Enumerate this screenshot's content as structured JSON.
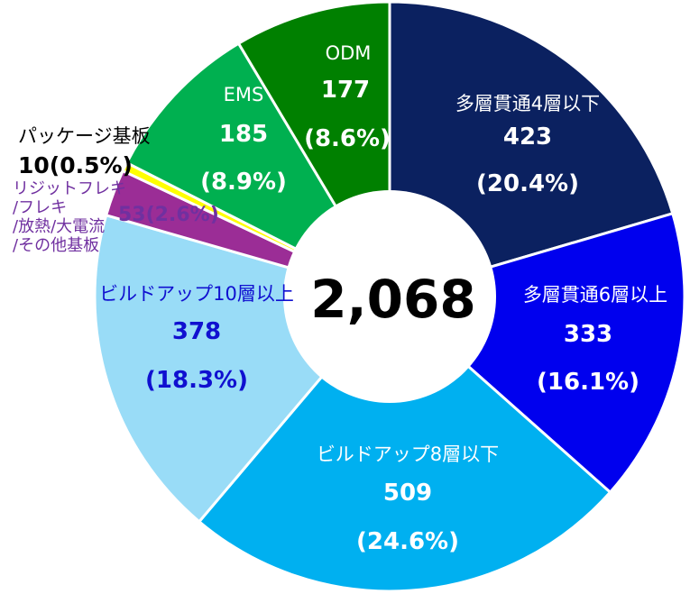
{
  "chart_data": {
    "type": "pie",
    "total": "2,068",
    "slices": [
      {
        "label": "多層貫通4層以下",
        "value": 423,
        "value_text": "423",
        "percent": 20.4,
        "percent_text": "(20.4%)",
        "color": "#0b2160",
        "text_color": "#ffffff"
      },
      {
        "label": "多層貫通6層以上",
        "value": 333,
        "value_text": "333",
        "percent": 16.1,
        "percent_text": "(16.1%)",
        "color": "#0000ee",
        "text_color": "#ffffff"
      },
      {
        "label": "ビルドアップ8層以下",
        "value": 509,
        "value_text": "509",
        "percent": 24.6,
        "percent_text": "(24.6%)",
        "color": "#00b0f0",
        "text_color": "#ffffff"
      },
      {
        "label": "ビルドアップ10層以上",
        "value": 378,
        "value_text": "378",
        "percent": 18.3,
        "percent_text": "(18.3%)",
        "color": "#99dcf7",
        "text_color": "#1010d0"
      },
      {
        "label_lines": [
          "リジットフレキ",
          "/フレキ",
          "/放熱/大電流",
          "/その他基板"
        ],
        "value": 53,
        "value_text": "53",
        "percent": 2.6,
        "percent_text": "(2.6%)",
        "color": "#9b2d96",
        "text_color": "#7030a0"
      },
      {
        "label": "パッケージ基板",
        "value": 10,
        "value_text": "10",
        "percent": 0.5,
        "percent_text": "(0.5%)",
        "color": "#ffff00",
        "text_color": "#000000"
      },
      {
        "label": "EMS",
        "value": 185,
        "value_text": "185",
        "percent": 8.9,
        "percent_text": "(8.9%)",
        "color": "#00b050",
        "text_color": "#ffffff"
      },
      {
        "label": "ODM",
        "value": 177,
        "value_text": "177",
        "percent": 8.6,
        "percent_text": "(8.6%)",
        "color": "#008000",
        "text_color": "#ffffff"
      }
    ]
  }
}
